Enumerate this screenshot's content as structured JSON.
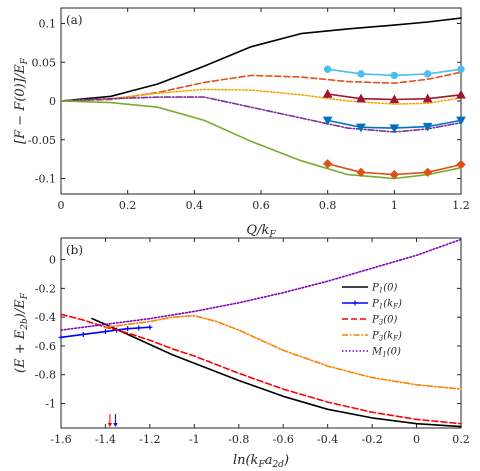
{
  "chart_data": [
    {
      "panel_label": "(a)",
      "type": "line",
      "xlabel": "Q/k_F",
      "ylabel": "[F − F(0)]/E_F",
      "xlim": [
        0,
        1.2
      ],
      "ylim": [
        -0.12,
        0.12
      ],
      "xticks": [
        0,
        0.2,
        0.4,
        0.6,
        0.8,
        1,
        1.2
      ],
      "xtick_labels": [
        "0",
        "0.2",
        "0.4",
        "0.6",
        "0.8",
        "1",
        "1.2"
      ],
      "yticks": [
        -0.1,
        -0.05,
        0,
        0.05,
        0.1
      ],
      "ytick_labels": [
        "-0.1",
        "-0.05",
        "0",
        "0.05",
        "0.1"
      ],
      "series": [
        {
          "color": "#000000",
          "style": "solid",
          "marker": "none",
          "x": [
            0,
            0.15,
            0.29,
            0.43,
            0.57,
            0.72,
            0.86,
            1.0,
            1.1,
            1.2
          ],
          "y": [
            0,
            0.006,
            0.022,
            0.045,
            0.07,
            0.087,
            0.093,
            0.098,
            0.102,
            0.107
          ]
        },
        {
          "color": "#e0521c",
          "style": "dashed",
          "marker": "none",
          "x": [
            0,
            0.15,
            0.29,
            0.43,
            0.57,
            0.72,
            0.86,
            1.0,
            1.1,
            1.2
          ],
          "y": [
            0,
            0.002,
            0.011,
            0.024,
            0.033,
            0.031,
            0.025,
            0.023,
            0.028,
            0.037
          ]
        },
        {
          "color": "#f0a800",
          "style": "dotted",
          "marker": "none",
          "x": [
            0,
            0.15,
            0.29,
            0.43,
            0.57,
            0.72,
            0.86,
            1.0,
            1.1,
            1.2
          ],
          "y": [
            0,
            0.003,
            0.01,
            0.015,
            0.014,
            0.008,
            0.0,
            -0.004,
            -0.003,
            0.004
          ]
        },
        {
          "color": "#7b2f9e",
          "style": "dashdot",
          "marker": "none",
          "x": [
            0,
            0.15,
            0.29,
            0.43,
            0.57,
            0.72,
            0.86,
            1.0,
            1.1,
            1.2
          ],
          "y": [
            0,
            0.003,
            0.005,
            0.005,
            -0.008,
            -0.022,
            -0.035,
            -0.04,
            -0.036,
            -0.028
          ]
        },
        {
          "color": "#77ac30",
          "style": "solid",
          "marker": "none",
          "x": [
            0,
            0.15,
            0.29,
            0.43,
            0.57,
            0.72,
            0.86,
            1.0,
            1.1,
            1.2
          ],
          "y": [
            0,
            -0.002,
            -0.008,
            -0.025,
            -0.052,
            -0.077,
            -0.095,
            -0.1,
            -0.095,
            -0.086
          ]
        },
        {
          "color": "#4dbeee",
          "style": "solid",
          "marker": "circle",
          "x": [
            0.8,
            0.9,
            1.0,
            1.1,
            1.2
          ],
          "y": [
            0.041,
            0.035,
            0.033,
            0.035,
            0.041
          ]
        },
        {
          "color": "#a2142f",
          "style": "solid",
          "marker": "triangle-up",
          "x": [
            0.8,
            0.9,
            1.0,
            1.1,
            1.2
          ],
          "y": [
            0.009,
            0.003,
            0.002,
            0.003,
            0.008
          ]
        },
        {
          "color": "#0072bd",
          "style": "solid",
          "marker": "triangle-down",
          "x": [
            0.8,
            0.9,
            1.0,
            1.1,
            1.2
          ],
          "y": [
            -0.025,
            -0.034,
            -0.035,
            -0.033,
            -0.025
          ]
        },
        {
          "color": "#d95319",
          "style": "solid",
          "marker": "diamond",
          "x": [
            0.8,
            0.9,
            1.0,
            1.1,
            1.2
          ],
          "y": [
            -0.081,
            -0.092,
            -0.095,
            -0.092,
            -0.082
          ]
        }
      ]
    },
    {
      "panel_label": "(b)",
      "type": "line",
      "xlabel": "ln(k_F a_2d)",
      "ylabel": "(E + E_2b)/E_F",
      "xlim": [
        -1.6,
        0.2
      ],
      "ylim": [
        -1.17,
        0.15
      ],
      "xticks": [
        -1.6,
        -1.4,
        -1.2,
        -1,
        -0.8,
        -0.6,
        -0.4,
        -0.2,
        0,
        0.2
      ],
      "xtick_labels": [
        "-1.6",
        "-1.4",
        "-1.2",
        "-1",
        "-0.8",
        "-0.6",
        "-0.4",
        "-0.2",
        "0",
        "0.2"
      ],
      "yticks": [
        -1,
        -0.8,
        -0.6,
        -0.4,
        -0.2,
        0
      ],
      "ytick_labels": [
        "-1",
        "-0.8",
        "-0.6",
        "-0.4",
        "-0.2",
        "0"
      ],
      "legend": {
        "position": "right"
      },
      "series": [
        {
          "name": "P_1(0)",
          "color": "#000000",
          "style": "solid",
          "marker": "none",
          "x": [
            -1.46,
            -1.4,
            -1.3,
            -1.2,
            -1.1,
            -1.0,
            -0.8,
            -0.6,
            -0.4,
            -0.2,
            0.0,
            0.2
          ],
          "y": [
            -0.41,
            -0.45,
            -0.52,
            -0.59,
            -0.66,
            -0.72,
            -0.84,
            -0.95,
            -1.04,
            -1.1,
            -1.14,
            -1.16
          ]
        },
        {
          "name": "P_1(k_F)",
          "color": "#0000ff",
          "style": "solid",
          "marker": "plus",
          "x": [
            -1.6,
            -1.5,
            -1.4,
            -1.35,
            -1.3,
            -1.25,
            -1.2
          ],
          "y": [
            -0.54,
            -0.52,
            -0.5,
            -0.49,
            -0.48,
            -0.475,
            -0.47
          ]
        },
        {
          "name": "P_3(0)",
          "color": "#ff0000",
          "style": "dashed",
          "marker": "none",
          "x": [
            -1.6,
            -1.5,
            -1.4,
            -1.3,
            -1.2,
            -1.1,
            -1.0,
            -0.8,
            -0.6,
            -0.4,
            -0.2,
            0.0,
            0.2
          ],
          "y": [
            -0.38,
            -0.42,
            -0.47,
            -0.51,
            -0.56,
            -0.62,
            -0.67,
            -0.79,
            -0.9,
            -0.99,
            -1.06,
            -1.11,
            -1.14
          ]
        },
        {
          "name": "P_3(k_F)",
          "color": "#ff8000",
          "style": "dashdot",
          "marker": "none",
          "x": [
            -1.4,
            -1.3,
            -1.2,
            -1.1,
            -1.0,
            -0.9,
            -0.8,
            -0.6,
            -0.4,
            -0.2,
            0.0,
            0.2
          ],
          "y": [
            -0.47,
            -0.45,
            -0.43,
            -0.4,
            -0.39,
            -0.43,
            -0.49,
            -0.63,
            -0.74,
            -0.82,
            -0.87,
            -0.9
          ]
        },
        {
          "name": "M_1(0)",
          "color": "#8000c0",
          "style": "dotted",
          "marker": "none",
          "x": [
            -1.6,
            -1.4,
            -1.2,
            -1.0,
            -0.8,
            -0.6,
            -0.4,
            -0.2,
            0.0,
            0.2
          ],
          "y": [
            -0.49,
            -0.45,
            -0.41,
            -0.36,
            -0.3,
            -0.23,
            -0.15,
            -0.06,
            0.03,
            0.14
          ]
        }
      ],
      "arrows": [
        {
          "x": -1.38,
          "color": "#ff0000"
        },
        {
          "x": -1.355,
          "color": "#0000ff"
        }
      ]
    }
  ],
  "legend_labels": [
    {
      "main": "P",
      "sub": "1",
      "rest": "(0)"
    },
    {
      "main": "P",
      "sub": "1",
      "rest": "(k",
      "sub2": "F",
      "rest2": ")"
    },
    {
      "main": "P",
      "sub": "3",
      "rest": "(0)"
    },
    {
      "main": "P",
      "sub": "3",
      "rest": "(k",
      "sub2": "F",
      "rest2": ")"
    },
    {
      "main": "M",
      "sub": "1",
      "rest": "(0)"
    }
  ]
}
